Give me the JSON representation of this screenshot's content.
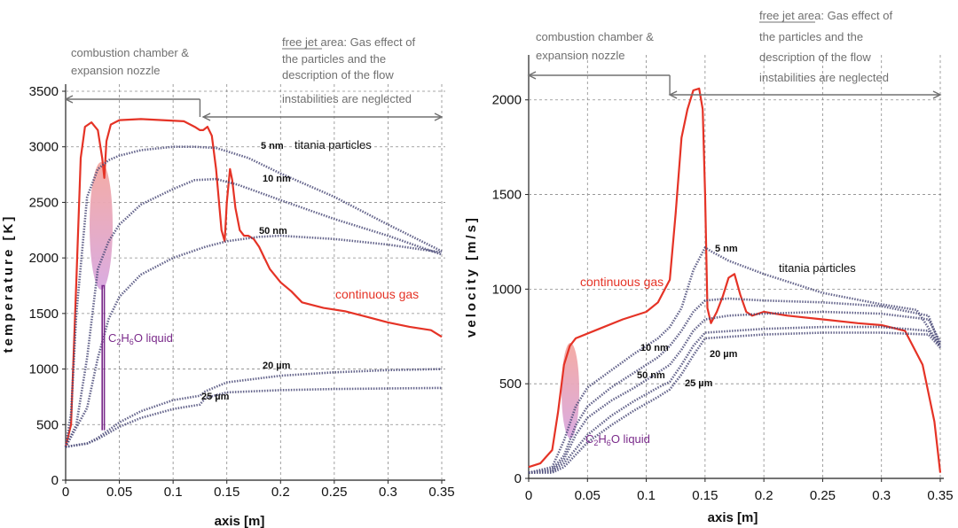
{
  "colors": {
    "gas": "#e53326",
    "particles": "#4a4a78",
    "liquid": "#7a2a8a",
    "grid": "#8a8a8a",
    "arrow": "#707070"
  },
  "chart_data": [
    {
      "type": "line",
      "title": "",
      "xlabel": "axis [m]",
      "ylabel": "temperature [K]",
      "xlim": [
        0,
        0.35
      ],
      "ylim": [
        0,
        3500
      ],
      "xticks": [
        0,
        0.05,
        0.1,
        0.15,
        0.2,
        0.25,
        0.3,
        0.35
      ],
      "xtick_labels": [
        "0",
        "0.05",
        "0.1",
        "0.15",
        "0.2",
        "0.25",
        "0.3",
        "0.35"
      ],
      "yticks": [
        0,
        500,
        1000,
        1500,
        2000,
        2500,
        3000,
        3500
      ],
      "ytick_labels": [
        "0",
        "500",
        "1000",
        "1500",
        "2000",
        "2500",
        "3000",
        "3500"
      ],
      "grid": true,
      "regions": [
        {
          "label_lines": [
            "combustion chamber &",
            "expansion nozzle"
          ],
          "x_from": 0,
          "x_to": 0.125
        },
        {
          "label_prefix": "free jet area",
          "label_lines": [
            "free jet area: Gas effect of",
            "the particles and the",
            "description of the flow",
            "instabilities are neglected"
          ],
          "x_from": 0.128,
          "x_to": 0.35
        }
      ],
      "annotations": {
        "particles": "titania particles",
        "gas": "continuous gas",
        "liquid": "C2H6O liquid"
      },
      "series": [
        {
          "name": "continuous gas",
          "style": "gas",
          "x": [
            0,
            0.005,
            0.01,
            0.014,
            0.018,
            0.024,
            0.03,
            0.034,
            0.036,
            0.038,
            0.042,
            0.05,
            0.07,
            0.09,
            0.11,
            0.12,
            0.125,
            0.128,
            0.132,
            0.136,
            0.14,
            0.145,
            0.148,
            0.15,
            0.153,
            0.155,
            0.158,
            0.162,
            0.166,
            0.17,
            0.175,
            0.18,
            0.185,
            0.19,
            0.2,
            0.21,
            0.22,
            0.24,
            0.26,
            0.28,
            0.3,
            0.32,
            0.34,
            0.35
          ],
          "y": [
            300,
            500,
            1800,
            2900,
            3180,
            3220,
            3150,
            2900,
            2720,
            3050,
            3200,
            3240,
            3250,
            3240,
            3230,
            3180,
            3150,
            3150,
            3180,
            3100,
            2800,
            2250,
            2150,
            2500,
            2800,
            2700,
            2450,
            2250,
            2200,
            2200,
            2170,
            2100,
            2000,
            1900,
            1780,
            1700,
            1600,
            1550,
            1520,
            1470,
            1420,
            1380,
            1350,
            1290
          ]
        },
        {
          "name": "5 nm",
          "style": "particle",
          "x": [
            0,
            0.005,
            0.01,
            0.02,
            0.03,
            0.04,
            0.05,
            0.07,
            0.1,
            0.12,
            0.14,
            0.17,
            0.2,
            0.25,
            0.3,
            0.35
          ],
          "y": [
            300,
            600,
            1500,
            2550,
            2800,
            2880,
            2920,
            2970,
            3000,
            3000,
            2990,
            2900,
            2760,
            2550,
            2300,
            2060
          ]
        },
        {
          "name": "10 nm",
          "style": "particle",
          "x": [
            0,
            0.01,
            0.02,
            0.03,
            0.04,
            0.05,
            0.07,
            0.1,
            0.12,
            0.14,
            0.16,
            0.2,
            0.25,
            0.3,
            0.35
          ],
          "y": [
            300,
            500,
            1100,
            1900,
            2150,
            2300,
            2480,
            2620,
            2700,
            2710,
            2660,
            2520,
            2350,
            2200,
            2030
          ]
        },
        {
          "name": "50 nm",
          "style": "particle",
          "x": [
            0,
            0.02,
            0.03,
            0.04,
            0.05,
            0.07,
            0.1,
            0.13,
            0.15,
            0.18,
            0.2,
            0.25,
            0.3,
            0.35
          ],
          "y": [
            300,
            650,
            1100,
            1450,
            1650,
            1850,
            2000,
            2100,
            2150,
            2190,
            2200,
            2170,
            2120,
            2050
          ]
        },
        {
          "name": "20 µm",
          "style": "particle",
          "x": [
            0,
            0.02,
            0.03,
            0.05,
            0.07,
            0.1,
            0.125,
            0.13,
            0.15,
            0.2,
            0.25,
            0.3,
            0.35
          ],
          "y": [
            300,
            330,
            380,
            520,
            620,
            720,
            760,
            800,
            880,
            940,
            970,
            990,
            1000
          ]
        },
        {
          "name": "25 µm",
          "style": "particle",
          "x": [
            0,
            0.02,
            0.03,
            0.05,
            0.07,
            0.1,
            0.125,
            0.13,
            0.15,
            0.2,
            0.25,
            0.3,
            0.35
          ],
          "y": [
            300,
            330,
            370,
            480,
            560,
            640,
            680,
            740,
            790,
            810,
            820,
            825,
            830
          ]
        },
        {
          "name": "C2H6O liquid",
          "style": "liquid",
          "x": [
            0.034,
            0.034,
            0.036,
            0.036
          ],
          "y": [
            450,
            1750,
            1750,
            450
          ]
        }
      ],
      "labels": {
        "5nm": "5 nm",
        "10nm": "10 nm",
        "50nm": "50 nm",
        "20um": "20 µm",
        "25um": "25 µm"
      }
    },
    {
      "type": "line",
      "title": "",
      "xlabel": "axis [m]",
      "ylabel": "velocity [m/s]",
      "xlim": [
        0,
        0.35
      ],
      "ylim": [
        0,
        2200
      ],
      "xticks": [
        0,
        0.05,
        0.1,
        0.15,
        0.2,
        0.25,
        0.3,
        0.35
      ],
      "xtick_labels": [
        "0",
        "0.05",
        "0.1",
        "0.15",
        "0.2",
        "0.25",
        "0.3",
        "0.35"
      ],
      "yticks": [
        0,
        500,
        1000,
        1500,
        2000
      ],
      "ytick_labels": [
        "0",
        "500",
        "1000",
        "1500",
        "2000"
      ],
      "grid": true,
      "regions": [
        {
          "label_lines": [
            "combustion chamber &",
            "expansion nozzle"
          ],
          "x_from": 0,
          "x_to": 0.12
        },
        {
          "label_prefix": "free jet area",
          "label_lines": [
            "free jet area: Gas effect of",
            "the particles and the",
            "description of the flow",
            "instabilities are neglected"
          ],
          "x_from": 0.12,
          "x_to": 0.35
        }
      ],
      "annotations": {
        "particles": "titania particles",
        "gas": "continuous gas",
        "liquid": "C2H6O liquid"
      },
      "series": [
        {
          "name": "continuous gas",
          "style": "gas",
          "x": [
            0,
            0.01,
            0.02,
            0.025,
            0.03,
            0.035,
            0.04,
            0.06,
            0.08,
            0.1,
            0.11,
            0.12,
            0.125,
            0.13,
            0.135,
            0.14,
            0.145,
            0.148,
            0.15,
            0.152,
            0.155,
            0.16,
            0.165,
            0.17,
            0.175,
            0.18,
            0.185,
            0.19,
            0.2,
            0.22,
            0.25,
            0.28,
            0.3,
            0.32,
            0.335,
            0.345,
            0.35
          ],
          "y": [
            60,
            80,
            150,
            350,
            600,
            700,
            740,
            790,
            840,
            880,
            930,
            1050,
            1400,
            1800,
            1950,
            2050,
            2060,
            1950,
            1500,
            900,
            820,
            880,
            960,
            1060,
            1080,
            970,
            880,
            860,
            880,
            860,
            840,
            820,
            810,
            780,
            600,
            300,
            30
          ]
        },
        {
          "name": "5 nm",
          "style": "particle",
          "x": [
            0,
            0.02,
            0.03,
            0.04,
            0.05,
            0.07,
            0.09,
            0.11,
            0.12,
            0.13,
            0.14,
            0.15,
            0.155,
            0.17,
            0.2,
            0.25,
            0.3,
            0.33,
            0.35
          ],
          "y": [
            30,
            60,
            200,
            380,
            480,
            570,
            660,
            740,
            800,
            900,
            1100,
            1220,
            1200,
            1150,
            1080,
            980,
            920,
            890,
            700
          ]
        },
        {
          "name": "10 nm",
          "style": "particle",
          "x": [
            0,
            0.02,
            0.03,
            0.04,
            0.05,
            0.07,
            0.09,
            0.11,
            0.12,
            0.13,
            0.14,
            0.15,
            0.17,
            0.2,
            0.25,
            0.3,
            0.34,
            0.35
          ],
          "y": [
            30,
            50,
            120,
            280,
            380,
            480,
            560,
            640,
            700,
            780,
            880,
            940,
            950,
            940,
            930,
            910,
            860,
            700
          ]
        },
        {
          "name": "50 nm",
          "style": "particle",
          "x": [
            0,
            0.02,
            0.03,
            0.04,
            0.05,
            0.07,
            0.09,
            0.11,
            0.12,
            0.13,
            0.14,
            0.15,
            0.17,
            0.2,
            0.25,
            0.3,
            0.34,
            0.35
          ],
          "y": [
            30,
            40,
            100,
            230,
            320,
            410,
            480,
            560,
            600,
            680,
            780,
            840,
            860,
            870,
            880,
            870,
            840,
            720
          ]
        },
        {
          "name": "20 µm",
          "style": "particle",
          "x": [
            0,
            0.02,
            0.03,
            0.05,
            0.07,
            0.09,
            0.11,
            0.12,
            0.13,
            0.14,
            0.15,
            0.2,
            0.25,
            0.3,
            0.34,
            0.35
          ],
          "y": [
            30,
            35,
            80,
            230,
            330,
            410,
            480,
            510,
            600,
            700,
            770,
            790,
            800,
            800,
            780,
            700
          ]
        },
        {
          "name": "25 µm",
          "style": "particle",
          "x": [
            0,
            0.02,
            0.03,
            0.05,
            0.07,
            0.09,
            0.11,
            0.12,
            0.13,
            0.14,
            0.15,
            0.2,
            0.25,
            0.3,
            0.34,
            0.35
          ],
          "y": [
            30,
            30,
            60,
            190,
            280,
            360,
            430,
            470,
            550,
            650,
            740,
            760,
            770,
            770,
            760,
            690
          ]
        }
      ],
      "labels": {
        "5nm": "5 nm",
        "10nm": "10 nm",
        "50nm": "50 nm",
        "20um": "20 µm",
        "25um": "25 µm"
      }
    }
  ]
}
